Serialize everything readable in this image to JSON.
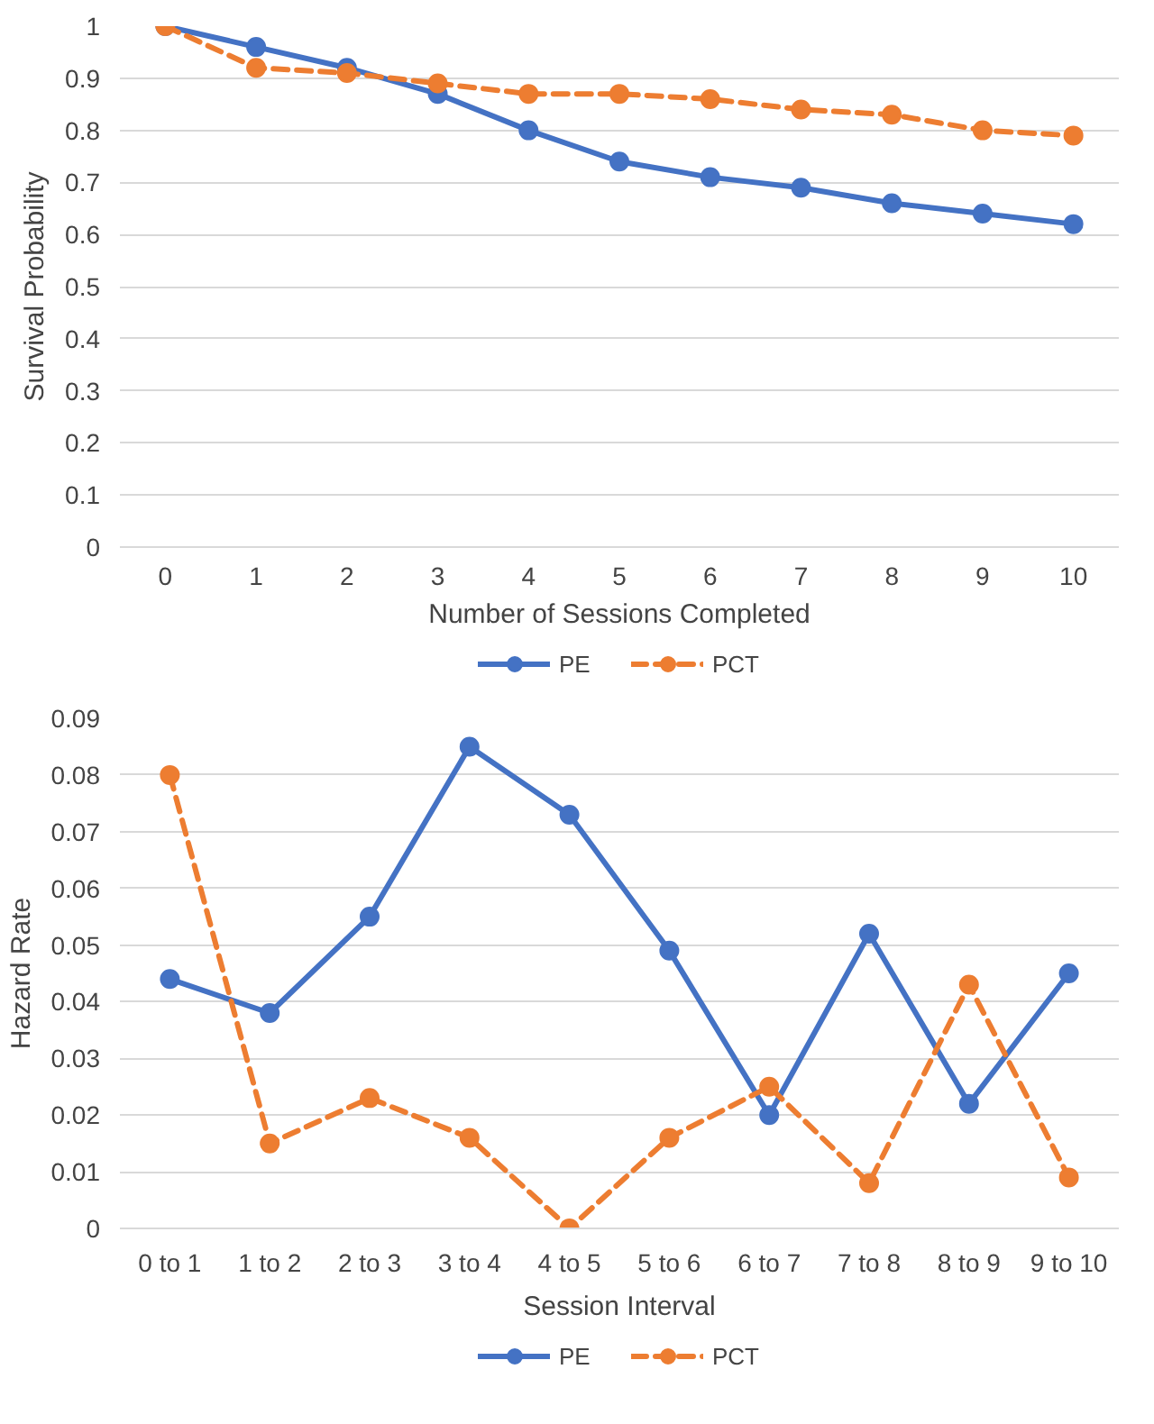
{
  "chart_data": [
    {
      "type": "line",
      "xlabel": "Number of Sessions Completed",
      "ylabel": "Survival Probability",
      "categories": [
        "0",
        "1",
        "2",
        "3",
        "4",
        "5",
        "6",
        "7",
        "8",
        "9",
        "10"
      ],
      "ylim": [
        0,
        1
      ],
      "yticks": [
        0,
        0.1,
        0.2,
        0.3,
        0.4,
        0.5,
        0.6,
        0.7,
        0.8,
        0.9,
        1
      ],
      "grid": "y",
      "legend": "bottom",
      "marker": "circle",
      "series": [
        {
          "name": "PE",
          "color": "#4472c4",
          "line_style": "solid",
          "values": [
            1,
            0.96,
            0.92,
            0.87,
            0.8,
            0.74,
            0.71,
            0.69,
            0.66,
            0.64,
            0.62
          ]
        },
        {
          "name": "PCT",
          "color": "#ed7d31",
          "line_style": "dashed",
          "values": [
            1,
            0.92,
            0.91,
            0.89,
            0.87,
            0.87,
            0.86,
            0.84,
            0.83,
            0.8,
            0.79
          ]
        }
      ]
    },
    {
      "type": "line",
      "xlabel": "Session Interval",
      "ylabel": "Hazard Rate",
      "categories": [
        "0 to 1",
        "1 to 2",
        "2 to 3",
        "3 to 4",
        "4 to 5",
        "5 to 6",
        "6 to 7",
        "7 to 8",
        "8 to 9",
        "9 to 10"
      ],
      "ylim": [
        0,
        0.09
      ],
      "yticks": [
        0,
        0.01,
        0.02,
        0.03,
        0.04,
        0.05,
        0.06,
        0.07,
        0.08,
        0.09
      ],
      "grid": "y",
      "legend": "bottom",
      "marker": "circle",
      "series": [
        {
          "name": "PE",
          "color": "#4472c4",
          "line_style": "solid",
          "values": [
            0.044,
            0.038,
            0.055,
            0.085,
            0.073,
            0.049,
            0.02,
            0.052,
            0.022,
            0.045
          ]
        },
        {
          "name": "PCT",
          "color": "#ed7d31",
          "line_style": "dashed",
          "values": [
            0.08,
            0.015,
            0.023,
            0.016,
            0,
            0.016,
            0.025,
            0.008,
            0.043,
            0.009
          ]
        }
      ]
    }
  ]
}
